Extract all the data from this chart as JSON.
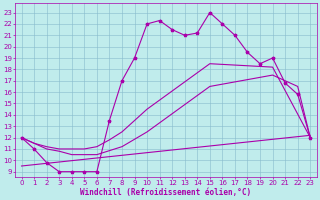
{
  "xlabel": "Windchill (Refroidissement éolien,°C)",
  "x_ticks": [
    0,
    1,
    2,
    3,
    4,
    5,
    6,
    7,
    8,
    9,
    10,
    11,
    12,
    13,
    14,
    15,
    16,
    17,
    18,
    19,
    20,
    21,
    22,
    23
  ],
  "y_ticks": [
    9,
    10,
    11,
    12,
    13,
    14,
    15,
    16,
    17,
    18,
    19,
    20,
    21,
    22,
    23
  ],
  "xlim": [
    -0.5,
    23.5
  ],
  "ylim": [
    8.5,
    23.8
  ],
  "bg_color": "#c0ecec",
  "grid_color": "#88bbcc",
  "line_color": "#aa00aa",
  "line1_x": [
    0,
    1,
    2,
    3,
    4,
    5,
    6,
    7,
    8,
    9,
    10,
    11,
    12,
    13,
    14,
    15,
    16,
    17,
    18,
    19,
    20,
    21,
    22,
    23
  ],
  "line1_y": [
    12.0,
    11.0,
    9.8,
    9.0,
    9.0,
    9.0,
    9.0,
    13.5,
    17.0,
    19.0,
    22.0,
    22.3,
    21.5,
    21.0,
    21.2,
    23.0,
    22.0,
    21.0,
    19.5,
    18.5,
    19.0,
    16.8,
    15.8,
    12.0
  ],
  "line2_x": [
    0,
    1,
    2,
    3,
    4,
    5,
    6,
    7,
    8,
    9,
    10,
    15,
    20,
    23
  ],
  "line2_y": [
    12.0,
    11.5,
    11.2,
    11.0,
    11.0,
    11.0,
    11.2,
    11.8,
    12.5,
    13.5,
    14.5,
    18.5,
    18.2,
    12.0
  ],
  "line3_x": [
    0,
    23
  ],
  "line3_y": [
    9.5,
    12.2
  ],
  "line4_x": [
    0,
    1,
    2,
    3,
    4,
    5,
    6,
    8,
    10,
    15,
    20,
    21,
    22,
    23
  ],
  "line4_y": [
    12.0,
    11.5,
    11.0,
    10.8,
    10.5,
    10.5,
    10.5,
    11.2,
    12.5,
    16.5,
    17.5,
    17.0,
    16.5,
    12.0
  ],
  "xlabel_fontsize": 5.5,
  "tick_fontsize": 5.0
}
